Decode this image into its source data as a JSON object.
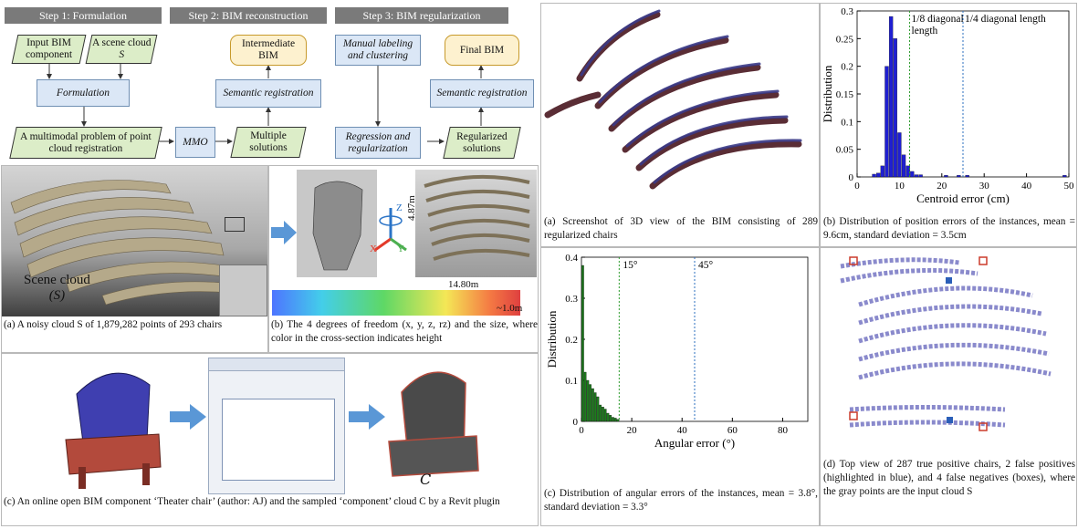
{
  "workflow": {
    "step1": "Step 1: Formulation",
    "step2": "Step 2: BIM reconstruction",
    "step3": "Step 3: BIM regularization",
    "input_bim": "Input BIM component",
    "scene_cloud_label": "A scene cloud",
    "scene_cloud_symbol": "S",
    "formulation": "Formulation",
    "problem": "A multimodal problem of point cloud registration",
    "mmo": "MMO",
    "multiple_solutions": "Multiple solutions",
    "semantic_registration_1": "Semantic registration",
    "intermediate_bim": "Intermediate BIM",
    "manual_labeling": "Manual labeling and clustering",
    "regression": "Regression and regularization",
    "regularized_solutions": "Regularized solutions",
    "semantic_registration_2": "Semantic registration",
    "final_bim": "Final BIM"
  },
  "panel_a": {
    "label_scene": "Scene cloud",
    "label_symbol": "(S)",
    "caption": "(a) A noisy cloud S of 1,879,282 points of 293 chairs"
  },
  "panel_b": {
    "dim_height": "4.87m",
    "dim_width": "14.80m",
    "dim_depth": "~1.0m",
    "axis_x": "X",
    "axis_y": "Y",
    "axis_z": "Z",
    "caption": "(b) The 4 degrees of freedom (x, y, z, rz) and the size, where color in the cross-section indicates height"
  },
  "panel_c": {
    "symbol": "C",
    "caption": "(c) An online open BIM component ‘Theater chair’ (author: AJ) and the sampled ‘component’ cloud C by a Revit plugin"
  },
  "right_a": {
    "caption": "(a) Screenshot of 3D view of the BIM consisting of 289 regularized chairs"
  },
  "right_b": {
    "caption": "(b) Distribution of position errors of the instances, mean = 9.6cm, standard deviation = 3.5cm"
  },
  "right_c": {
    "caption": "(c) Distribution of angular errors of the instances, mean = 3.8°, standard deviation = 3.3°"
  },
  "right_d": {
    "caption": "(d) Top view of 287 true positive chairs, 2 false positives (highlighted in blue), and 4 false negatives (boxes), where the gray points are the input cloud S"
  },
  "chart_data": [
    {
      "type": "bar",
      "xlabel": "Centroid error (cm)",
      "ylabel": "Distribution",
      "xlim": [
        0,
        50
      ],
      "ylim": [
        0,
        0.3
      ],
      "xticks": [
        "0",
        "10",
        "20",
        "30",
        "40",
        "50"
      ],
      "yticks": [
        "0",
        "0.05",
        "0.1",
        "0.15",
        "0.2",
        "0.25",
        "0.3"
      ],
      "color": "#1f1fd2",
      "x": [
        4,
        5,
        6,
        7,
        8,
        9,
        10,
        11,
        12,
        13,
        14,
        15,
        21,
        24,
        26,
        49
      ],
      "values": [
        0.005,
        0.007,
        0.02,
        0.2,
        0.29,
        0.25,
        0.08,
        0.04,
        0.02,
        0.01,
        0.004,
        0.004,
        0.003,
        0.003,
        0.003,
        0.003
      ],
      "vlines": [
        {
          "x": 12.4,
          "color": "#2e9b2e",
          "label": "1/8 diagonal length"
        },
        {
          "x": 25,
          "color": "#2b6fbf",
          "label": "1/4 diagonal length"
        }
      ]
    },
    {
      "type": "bar",
      "xlabel": "Angular error (°)",
      "ylabel": "Distribution",
      "xlim": [
        0,
        90
      ],
      "ylim": [
        0,
        0.4
      ],
      "xticks": [
        "0",
        "20",
        "40",
        "60",
        "80"
      ],
      "yticks": [
        "0",
        "0.1",
        "0.2",
        "0.3",
        "0.4"
      ],
      "color": "#1e7a1e",
      "x": [
        0.5,
        1.5,
        2.5,
        3.5,
        4.5,
        5.5,
        6.5,
        7.5,
        8.5,
        9.5,
        10.5,
        11.5,
        12.5,
        13.5,
        14.5
      ],
      "values": [
        0.38,
        0.12,
        0.1,
        0.09,
        0.08,
        0.07,
        0.06,
        0.04,
        0.035,
        0.03,
        0.02,
        0.015,
        0.01,
        0.008,
        0.005
      ],
      "vlines": [
        {
          "x": 15,
          "color": "#2e9b2e",
          "label": "15°"
        },
        {
          "x": 45,
          "color": "#2b6fbf",
          "label": "45°"
        }
      ]
    }
  ]
}
